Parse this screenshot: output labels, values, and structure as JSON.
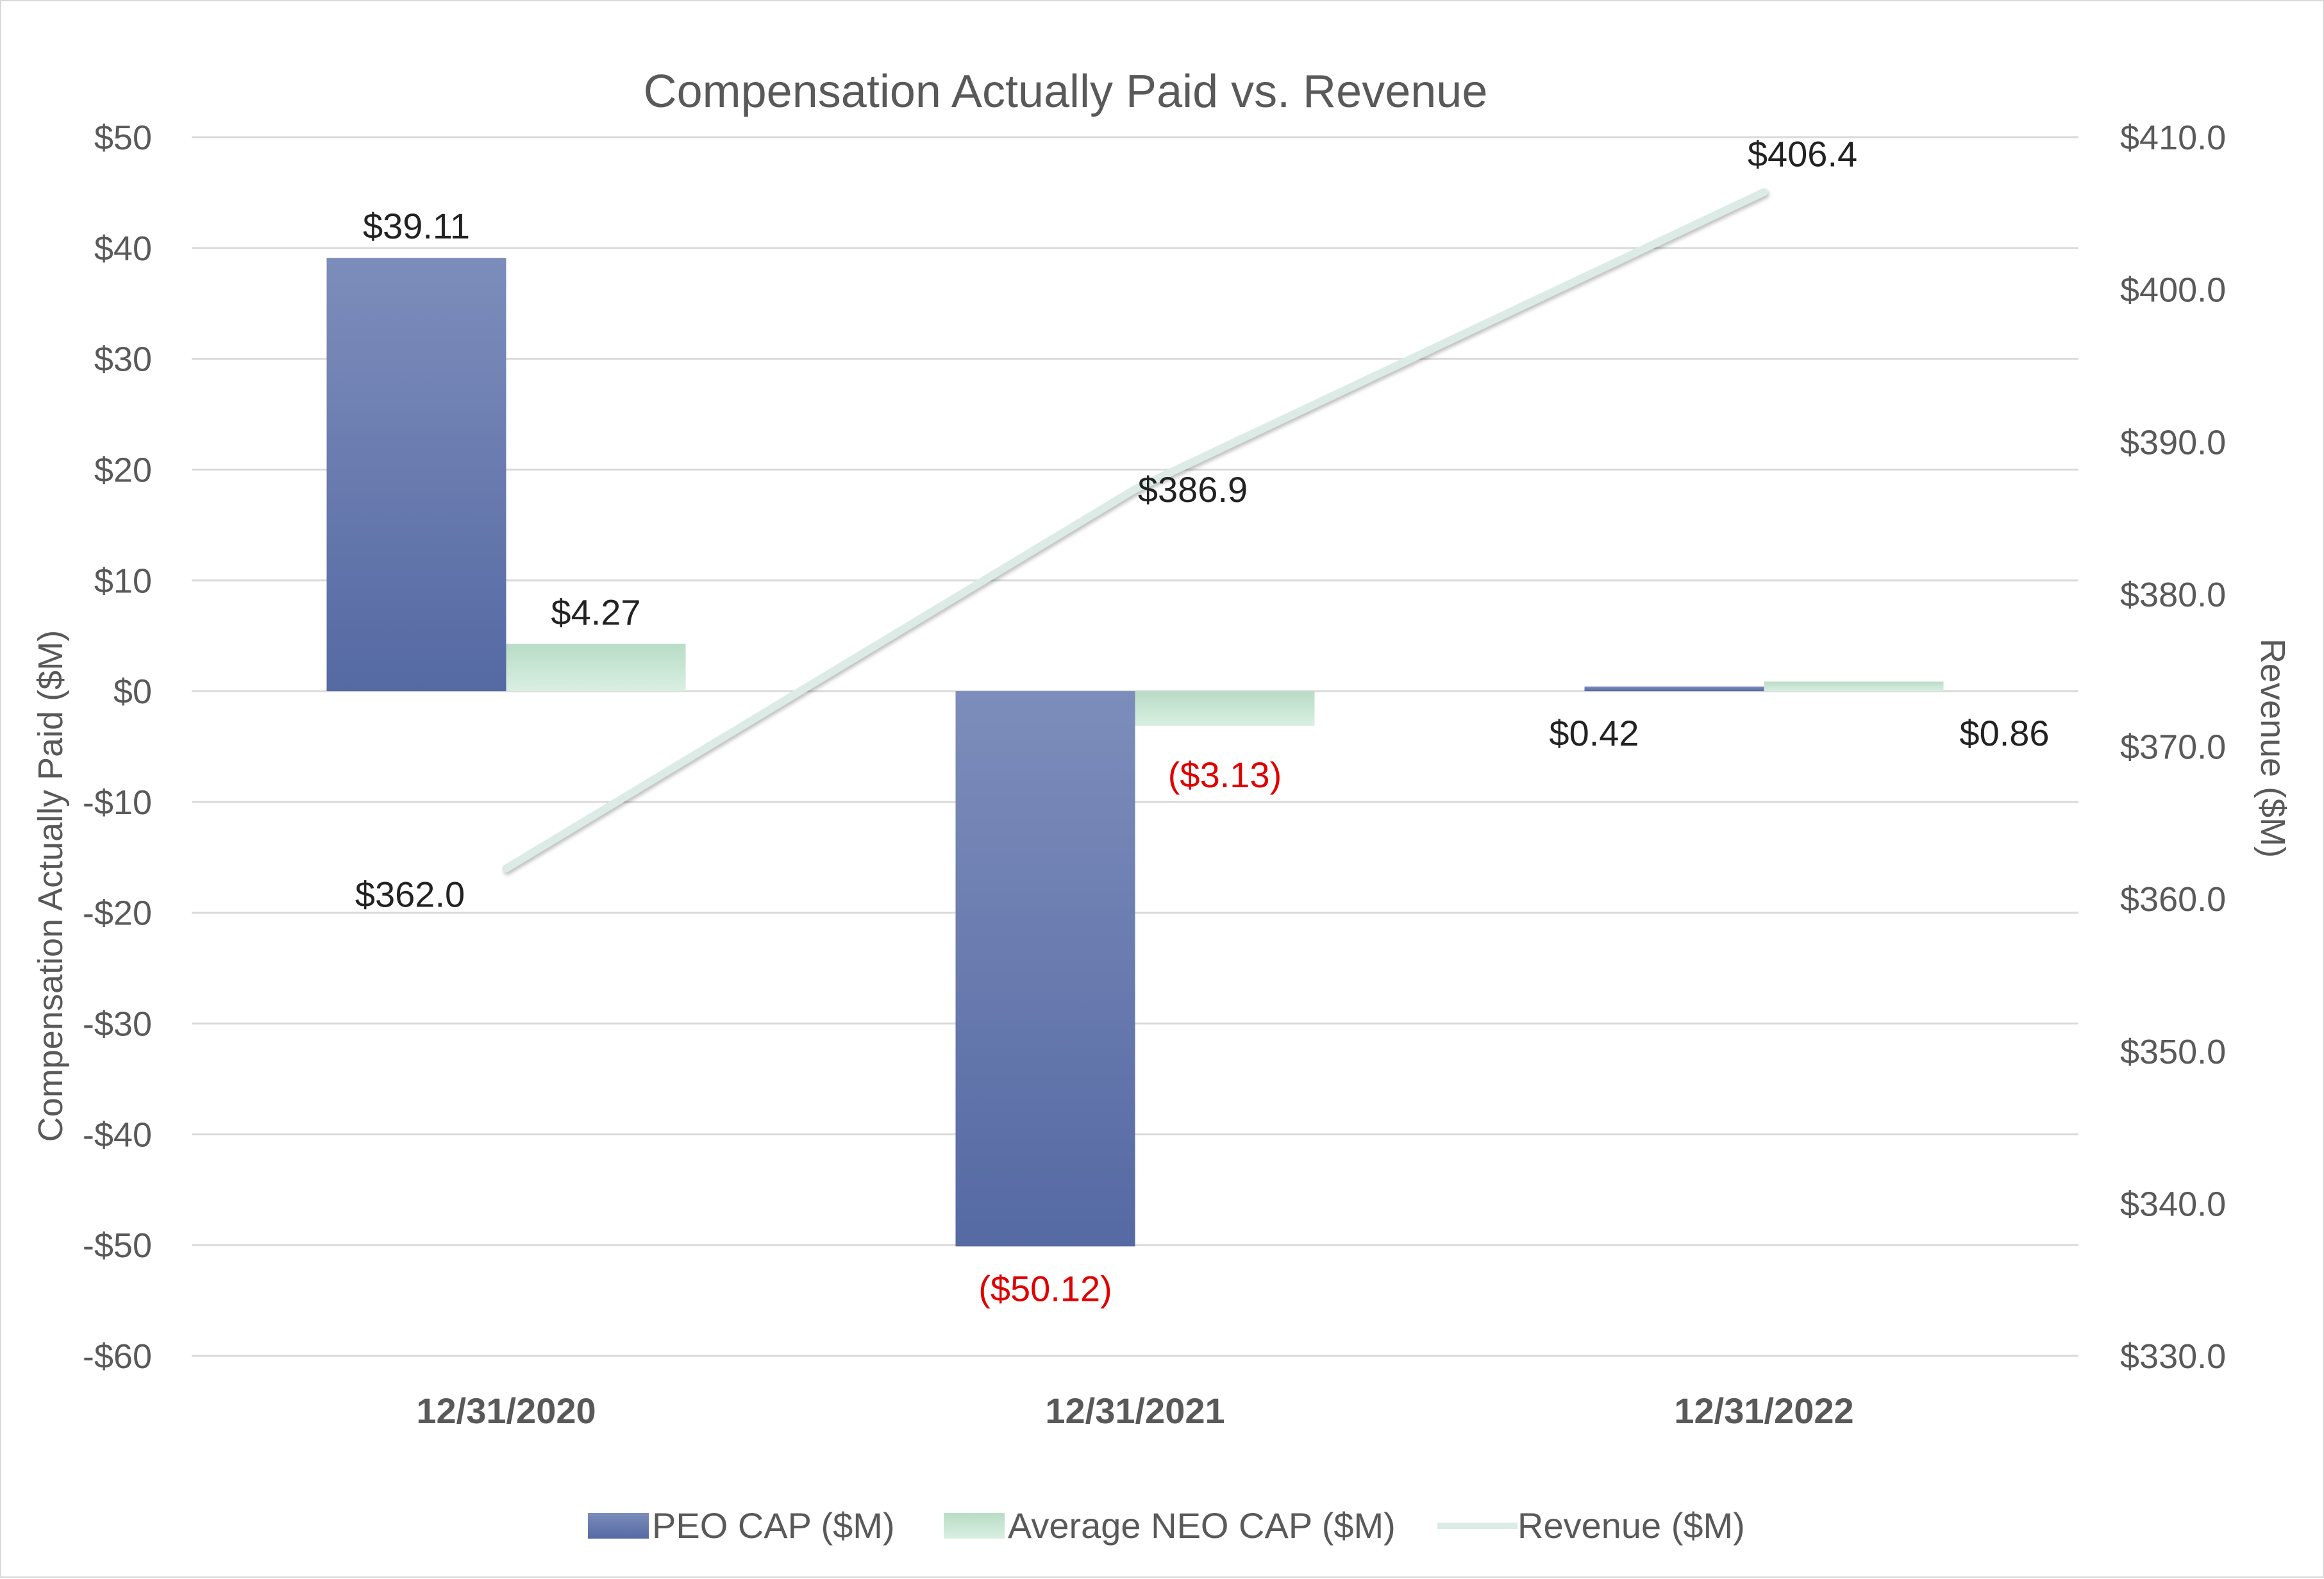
{
  "chart_data": {
    "type": "bar",
    "title": "Compensation Actually Paid vs.  Revenue",
    "categories": [
      "12/31/2020",
      "12/31/2021",
      "12/31/2022"
    ],
    "ylabel": "Compensation Actually Paid ($M)",
    "y2label": "Revenue ($M)",
    "ylim": [
      -60,
      50
    ],
    "y2lim": [
      330,
      410
    ],
    "yticks": [
      50,
      40,
      30,
      20,
      10,
      0,
      -10,
      -20,
      -30,
      -40,
      -50,
      -60
    ],
    "ytick_labels": [
      "$50",
      "$40",
      "$30",
      "$20",
      "$10",
      "$0",
      "-$10",
      "-$20",
      "-$30",
      "-$40",
      "-$50",
      "-$60"
    ],
    "y2ticks": [
      410,
      400,
      390,
      380,
      370,
      360,
      350,
      340,
      330
    ],
    "y2tick_labels": [
      "$410.0",
      "$400.0",
      "$390.0",
      "$380.0",
      "$370.0",
      "$360.0",
      "$350.0",
      "$340.0",
      "$330.0"
    ],
    "grid": true,
    "legend_position": "bottom",
    "series": [
      {
        "name": "PEO CAP ($M)",
        "kind": "bar",
        "axis": "left",
        "values": [
          39.11,
          -50.12,
          0.42
        ],
        "labels": [
          "$39.11",
          "($50.12)",
          "$0.42"
        ],
        "color": "#5b6fa8"
      },
      {
        "name": "Average NEO CAP ($M)",
        "kind": "bar",
        "axis": "left",
        "values": [
          4.27,
          -3.13,
          0.86
        ],
        "labels": [
          "$4.27",
          "($3.13)",
          "$0.86"
        ],
        "color": "#c5e3d0"
      },
      {
        "name": "Revenue ($M)",
        "kind": "line",
        "axis": "right",
        "values": [
          362.0,
          386.9,
          406.4
        ],
        "labels": [
          "$362.0",
          "$386.9",
          "$406.4"
        ],
        "color": "#dcebe6"
      }
    ],
    "colors": {
      "negative_label": "#e00000",
      "label_text": "#222222",
      "axis_text": "#595959",
      "gridline": "#d9d9d9"
    }
  }
}
